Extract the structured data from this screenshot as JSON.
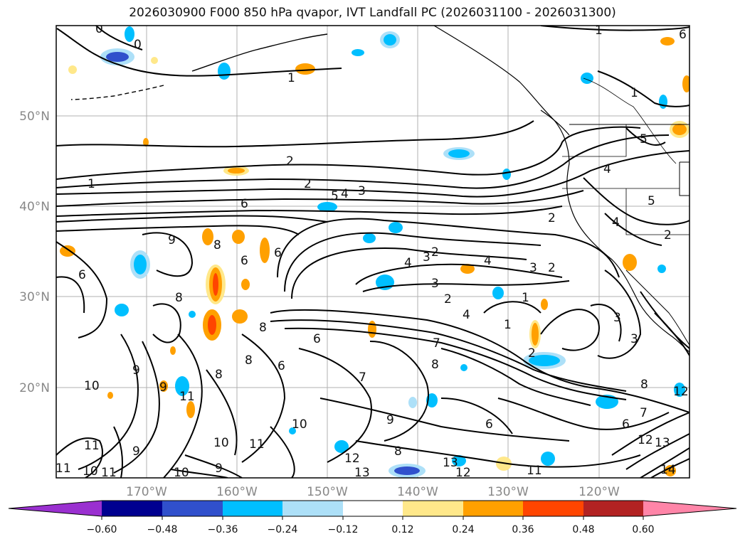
{
  "title": "2026030900 F000 850 hPa qvapor, IVT Landfall PC (2026031100 - 2026031300)",
  "map": {
    "lat_labels": [
      "50°N",
      "40°N",
      "30°N",
      "20°N"
    ],
    "lon_labels": [
      "170°W",
      "160°W",
      "150°W",
      "140°W",
      "130°W",
      "120°W"
    ],
    "contour_labels": [
      "0",
      "0",
      "1",
      "1",
      "1",
      "1",
      "2",
      "2",
      "2",
      "5",
      "4",
      "3",
      "6",
      "2",
      "4",
      "5",
      "5",
      "4",
      "2",
      "9",
      "8",
      "6",
      "6",
      "4",
      "3",
      "2",
      "4",
      "3",
      "2",
      "3",
      "1",
      "8",
      "8",
      "6",
      "6",
      "7",
      "2",
      "4",
      "1",
      "3",
      "6",
      "8",
      "9",
      "8",
      "7",
      "8",
      "10",
      "9",
      "11",
      "11",
      "10",
      "9",
      "10",
      "11",
      "9",
      "8",
      "11",
      "10",
      "11",
      "10",
      "9",
      "12",
      "13",
      "6",
      "13",
      "12",
      "11",
      "12",
      "8",
      "7",
      "6",
      "12",
      "13",
      "14",
      "6",
      "3"
    ]
  },
  "colorbar": {
    "colors": [
      "#9A30D0",
      "#000090",
      "#3050CC",
      "#00BFFF",
      "#ADE0F8",
      "#FFFFFF",
      "#FFE88A",
      "#FFA000",
      "#FF4500",
      "#B22222",
      "#FF85A8"
    ],
    "ticks": [
      "−0.60",
      "−0.48",
      "−0.36",
      "−0.24",
      "−0.12",
      "0.12",
      "0.24",
      "0.36",
      "0.48",
      "0.60"
    ]
  }
}
